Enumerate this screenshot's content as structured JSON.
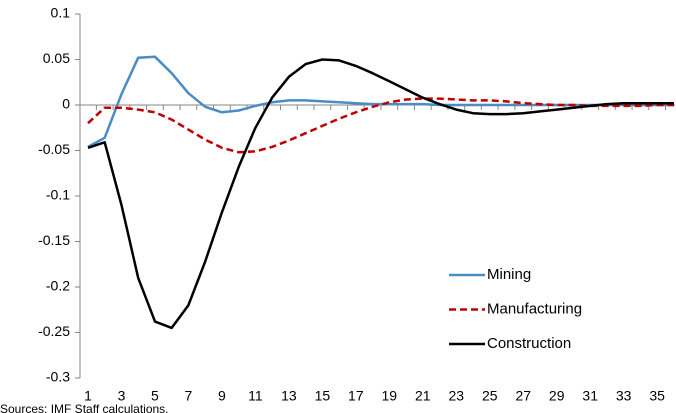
{
  "chart_data": {
    "type": "line",
    "categories": [
      "1",
      null,
      "3",
      null,
      "5",
      null,
      "7",
      null,
      "9",
      null,
      "11",
      null,
      "13",
      null,
      "15",
      null,
      "17",
      null,
      "19",
      null,
      "21",
      null,
      "23",
      null,
      "25",
      null,
      "27",
      null,
      "29",
      null,
      "31",
      null,
      "33",
      null,
      "35",
      null
    ],
    "series": [
      {
        "name": "Mining",
        "color": "#4a8cc4",
        "dashed": false,
        "values": [
          -0.046,
          -0.036,
          0.012,
          0.052,
          0.053,
          0.035,
          0.013,
          -0.002,
          -0.008,
          -0.006,
          -0.001,
          0.003,
          0.005,
          0.005,
          0.004,
          0.003,
          0.002,
          0.001,
          0.001,
          0.001,
          0.001,
          0,
          0,
          0,
          0,
          0,
          0,
          0,
          0,
          0,
          0,
          0,
          0,
          0,
          0,
          0
        ]
      },
      {
        "name": "Manufacturing",
        "color": "#c00000",
        "dashed": true,
        "values": [
          -0.02,
          -0.003,
          -0.003,
          -0.005,
          -0.008,
          -0.016,
          -0.027,
          -0.038,
          -0.047,
          -0.052,
          -0.051,
          -0.046,
          -0.039,
          -0.031,
          -0.023,
          -0.015,
          -0.008,
          -0.002,
          0.003,
          0.006,
          0.007,
          0.007,
          0.006,
          0.005,
          0.005,
          0.004,
          0.002,
          0.001,
          0,
          0,
          -0.001,
          -0.001,
          -0.001,
          -0.001,
          0,
          0
        ]
      },
      {
        "name": "Construction",
        "color": "#000000",
        "dashed": false,
        "values": [
          -0.047,
          -0.041,
          -0.11,
          -0.19,
          -0.238,
          -0.245,
          -0.22,
          -0.172,
          -0.118,
          -0.068,
          -0.025,
          0.008,
          0.031,
          0.045,
          0.05,
          0.049,
          0.043,
          0.035,
          0.026,
          0.017,
          0.008,
          0.001,
          -0.005,
          -0.009,
          -0.01,
          -0.01,
          -0.009,
          -0.007,
          -0.005,
          -0.003,
          -0.001,
          0.001,
          0.002,
          0.002,
          0.002,
          0.002
        ]
      }
    ],
    "ylim": [
      -0.3,
      0.1
    ],
    "yticks": [
      0.1,
      0.05,
      0,
      -0.05,
      -0.1,
      -0.15,
      -0.2,
      -0.25,
      -0.3
    ],
    "grid": false,
    "legend": "lower right",
    "note": "Sources: IMF Staff calculations."
  }
}
